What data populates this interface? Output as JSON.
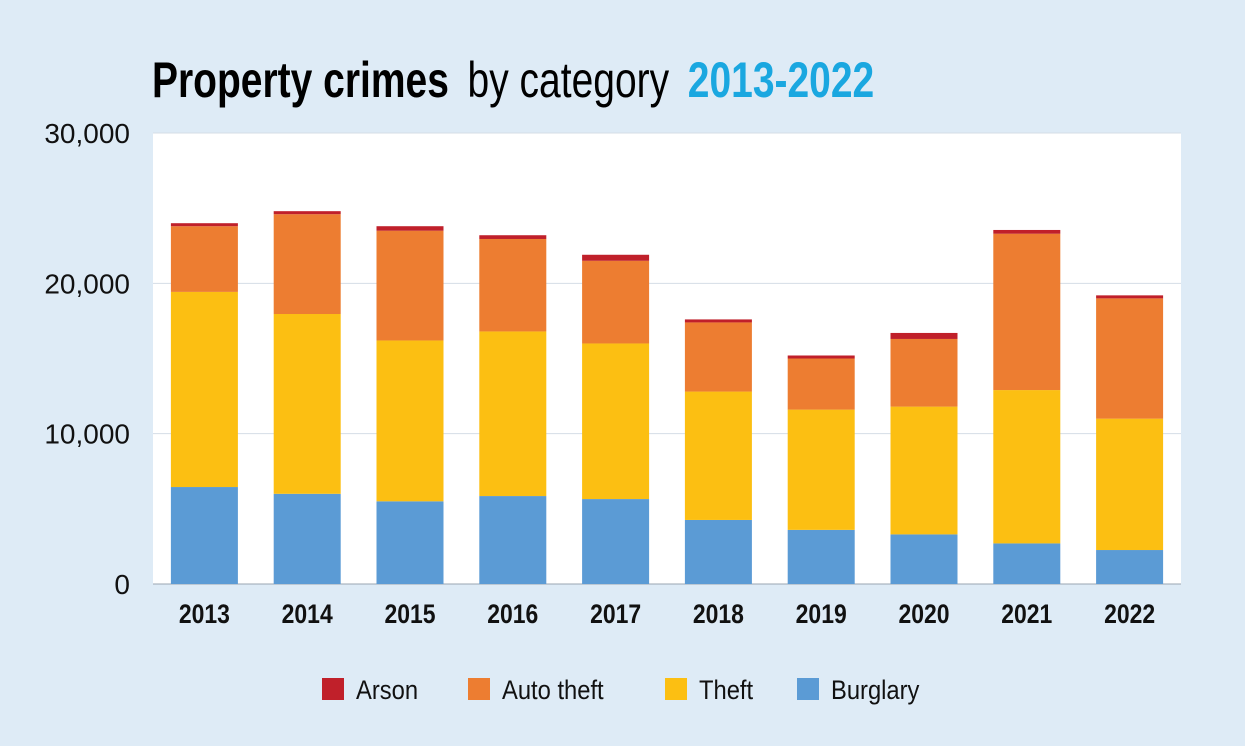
{
  "chart_data": {
    "type": "bar",
    "stacked": true,
    "title_parts": {
      "bold": "Property crimes",
      "normal": "by category",
      "accent": "2013-2022"
    },
    "categories": [
      "2013",
      "2014",
      "2015",
      "2016",
      "2017",
      "2018",
      "2019",
      "2020",
      "2021",
      "2022"
    ],
    "series": [
      {
        "name": "Burglary",
        "color": "#5b9bd5",
        "values": [
          6450,
          6000,
          5500,
          5850,
          5650,
          4260,
          3600,
          3300,
          2700,
          2260
        ]
      },
      {
        "name": "Theft",
        "color": "#fcbf12",
        "values": [
          12980,
          11960,
          10700,
          10950,
          10350,
          8540,
          8000,
          8500,
          10200,
          8740
        ]
      },
      {
        "name": "Auto theft",
        "color": "#ed7d31",
        "values": [
          4370,
          6640,
          7300,
          6150,
          5500,
          4600,
          3400,
          4500,
          10400,
          8000
        ]
      },
      {
        "name": "Arson",
        "color": "#c0202a",
        "values": [
          200,
          200,
          300,
          250,
          400,
          200,
          200,
          400,
          250,
          200
        ]
      }
    ],
    "legend_order": [
      "Arson",
      "Auto theft",
      "Theft",
      "Burglary"
    ],
    "yticks": [
      "0",
      "10,000",
      "20,000",
      "30,000"
    ],
    "ylim": [
      0,
      30000
    ],
    "grid": true,
    "legend_position": "bottom",
    "accent_color": "#1aa7e0"
  }
}
